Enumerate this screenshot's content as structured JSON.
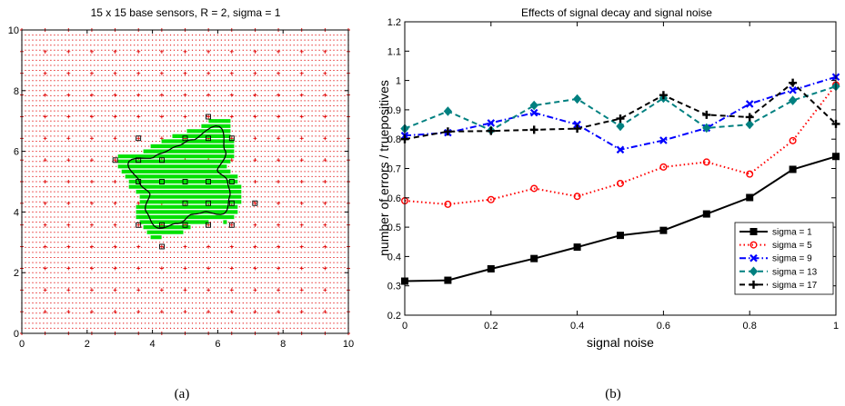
{
  "chart_data": [
    {
      "type": "scatter",
      "title": "15 x 15 base sensors, R = 2, sigma = 1",
      "xlim": [
        0,
        10
      ],
      "ylim": [
        0,
        10
      ],
      "x_ticks": [
        0,
        2,
        4,
        6,
        8,
        10
      ],
      "y_ticks": [
        0,
        2,
        4,
        6,
        8,
        10
      ],
      "grid": false,
      "caption": "(a)",
      "colors": {
        "grid_points": "#e00000",
        "region": "#00e000",
        "boundary": "#000000",
        "sensors": "#000000"
      },
      "boundary_center": [
        5.0,
        5.0
      ],
      "boundary_polar": [
        {
          "angle_deg": 0,
          "r": 1.3
        },
        {
          "angle_deg": 20,
          "r": 1.05
        },
        {
          "angle_deg": 40,
          "r": 1.6
        },
        {
          "angle_deg": 60,
          "r": 2.1
        },
        {
          "angle_deg": 80,
          "r": 1.4
        },
        {
          "angle_deg": 100,
          "r": 1.2
        },
        {
          "angle_deg": 120,
          "r": 1.15
        },
        {
          "angle_deg": 140,
          "r": 1.25
        },
        {
          "angle_deg": 160,
          "r": 1.85
        },
        {
          "angle_deg": 180,
          "r": 1.4
        },
        {
          "angle_deg": 200,
          "r": 1.15
        },
        {
          "angle_deg": 220,
          "r": 1.55
        },
        {
          "angle_deg": 240,
          "r": 1.75
        },
        {
          "angle_deg": 260,
          "r": 1.4
        },
        {
          "angle_deg": 280,
          "r": 1.1
        },
        {
          "angle_deg": 300,
          "r": 1.15
        },
        {
          "angle_deg": 320,
          "r": 1.6
        },
        {
          "angle_deg": 340,
          "r": 1.45
        }
      ],
      "sensors": [
        [
          3.57,
          6.43
        ],
        [
          5.71,
          7.14
        ],
        [
          4.29,
          5.71
        ],
        [
          3.57,
          5.71
        ],
        [
          2.86,
          5.71
        ],
        [
          6.43,
          6.43
        ],
        [
          5.0,
          6.43
        ],
        [
          5.71,
          6.43
        ],
        [
          4.29,
          5.0
        ],
        [
          3.57,
          5.0
        ],
        [
          5.0,
          5.0
        ],
        [
          5.71,
          5.0
        ],
        [
          6.43,
          5.0
        ],
        [
          5.0,
          4.29
        ],
        [
          5.71,
          4.29
        ],
        [
          6.43,
          4.29
        ],
        [
          7.14,
          4.29
        ],
        [
          3.57,
          3.57
        ],
        [
          4.29,
          3.57
        ],
        [
          5.0,
          3.57
        ],
        [
          5.71,
          3.57
        ],
        [
          6.43,
          3.57
        ],
        [
          4.29,
          2.86
        ]
      ]
    },
    {
      "type": "line",
      "title": "Effects of signal decay and signal noise",
      "xlabel": "signal noise",
      "ylabel": "number of errors / truepositives",
      "xlim": [
        0,
        1
      ],
      "ylim": [
        0.2,
        1.2
      ],
      "x_ticks": [
        0,
        0.2,
        0.4,
        0.6,
        0.8,
        1
      ],
      "y_ticks": [
        0.2,
        0.3,
        0.4,
        0.5,
        0.6,
        0.7,
        0.8,
        0.9,
        1,
        1.1,
        1.2
      ],
      "grid": false,
      "legend_position": "bottom-right",
      "caption": "(b)",
      "x": [
        0,
        0.1,
        0.2,
        0.3,
        0.4,
        0.5,
        0.6,
        0.7,
        0.8,
        0.9,
        1
      ],
      "series": [
        {
          "name": "sigma = 1",
          "color": "#000000",
          "dash": "solid",
          "marker": "square",
          "values": [
            0.316,
            0.319,
            0.358,
            0.393,
            0.432,
            0.472,
            0.489,
            0.545,
            0.601,
            0.697,
            0.741
          ]
        },
        {
          "name": "sigma = 5",
          "color": "#ff0000",
          "dash": "dotted",
          "marker": "circle",
          "values": [
            0.59,
            0.578,
            0.594,
            0.632,
            0.605,
            0.649,
            0.705,
            0.722,
            0.681,
            0.795,
            0.985
          ]
        },
        {
          "name": "sigma = 9",
          "color": "#0000ff",
          "dash": "dashdot",
          "marker": "x",
          "values": [
            0.812,
            0.822,
            0.855,
            0.89,
            0.85,
            0.764,
            0.796,
            0.838,
            0.92,
            0.967,
            1.012
          ]
        },
        {
          "name": "sigma = 13",
          "color": "#008080",
          "dash": "dashed",
          "marker": "diamond",
          "values": [
            0.836,
            0.895,
            0.83,
            0.915,
            0.937,
            0.844,
            0.94,
            0.838,
            0.85,
            0.932,
            0.98
          ]
        },
        {
          "name": "sigma = 17",
          "color": "#000000",
          "dash": "dashed",
          "marker": "plus",
          "values": [
            0.8,
            0.826,
            0.828,
            0.832,
            0.836,
            0.87,
            0.95,
            0.883,
            0.875,
            0.992,
            0.852
          ]
        }
      ]
    }
  ]
}
